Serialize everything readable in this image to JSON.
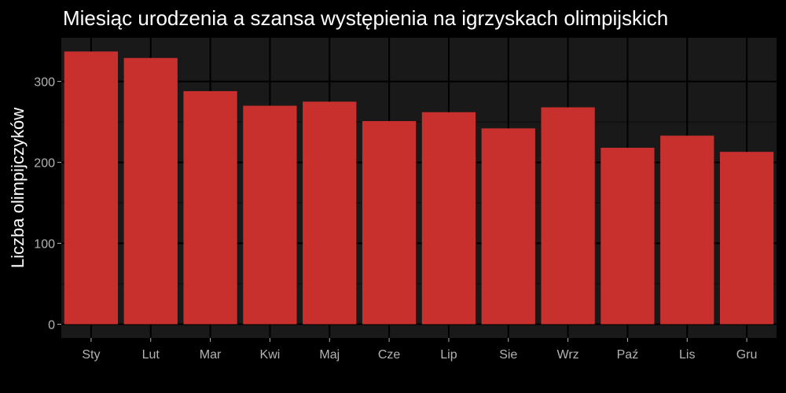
{
  "chart_data": {
    "type": "bar",
    "title": "Miesiąc urodzenia a szansa występienia na igrzyskach olimpijskich",
    "xlabel": "",
    "ylabel": "Liczba olimpijczyków",
    "categories": [
      "Sty",
      "Lut",
      "Mar",
      "Kwi",
      "Maj",
      "Cze",
      "Lip",
      "Sie",
      "Wrz",
      "Paź",
      "Lis",
      "Gru"
    ],
    "values": [
      337,
      329,
      288,
      270,
      275,
      251,
      262,
      242,
      268,
      218,
      233,
      213
    ],
    "ylim": [
      -17,
      354
    ],
    "yticks": [
      0,
      100,
      200,
      300
    ],
    "grid": true,
    "colors": {
      "background": "#000000",
      "panel": "#191919",
      "grid_major": "#000000",
      "grid_minor": "#0c0c0c",
      "bar": "#c8302e"
    }
  }
}
